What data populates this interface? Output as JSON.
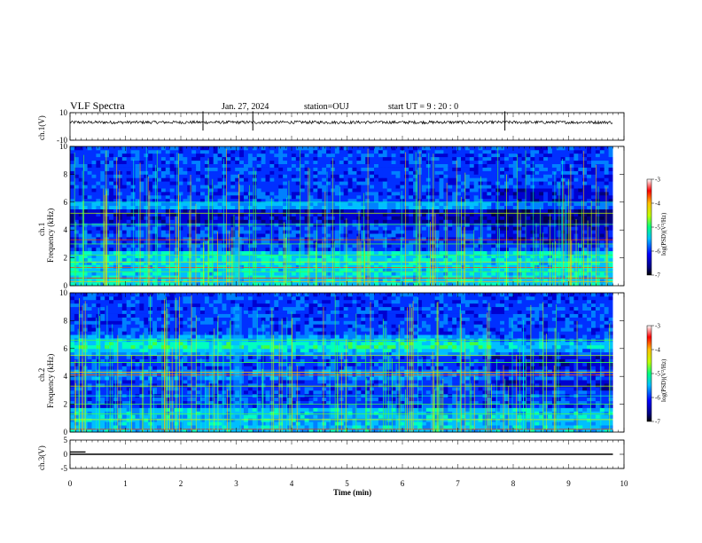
{
  "header": {
    "title": "VLF Spectra",
    "date": "Jan. 27, 2024",
    "station": "station=OUJ",
    "start_ut": "start  UT =   9 : 20 : 0"
  },
  "chart_data": [
    {
      "type": "line",
      "panel": "ch1-waveform",
      "ylabel": "ch.1(V)",
      "ylim": [
        -10,
        10
      ],
      "yticks": [
        "10",
        "-10"
      ],
      "baseline": 3,
      "spikes_min": [
        2.4,
        3.3,
        7.85
      ]
    },
    {
      "type": "heatmap",
      "panel": "ch1-spectrogram",
      "ylabel": "Frequency (kHz)",
      "channel_label": "ch.1",
      "ylim": [
        0,
        10
      ],
      "yticks": [
        "0",
        "2",
        "4",
        "6",
        "8",
        "10"
      ],
      "colorbar": {
        "label": "log(PSD)(V²/Hz)",
        "ticks": [
          "-3",
          "-4",
          "-5",
          "-6",
          "-7"
        ],
        "range": [
          -7,
          -3
        ]
      }
    },
    {
      "type": "heatmap",
      "panel": "ch2-spectrogram",
      "ylabel": "Frequency (kHz)",
      "channel_label": "ch.2",
      "ylim": [
        0,
        10
      ],
      "yticks": [
        "0",
        "2",
        "4",
        "6",
        "8",
        "10"
      ],
      "colorbar": {
        "label": "log(PSD)(V²/Hz)",
        "ticks": [
          "-3",
          "-4",
          "-5",
          "-6",
          "-7"
        ],
        "range": [
          -7,
          -3
        ]
      }
    },
    {
      "type": "line",
      "panel": "ch3-waveform",
      "ylabel": "ch.3(V)",
      "ylim": [
        -5,
        5
      ],
      "yticks": [
        "5",
        "0",
        "-5"
      ],
      "values": [
        {
          "x": 0,
          "y": 0
        },
        {
          "x": 9.8,
          "y": 0
        }
      ]
    }
  ],
  "xaxis": {
    "label": "Time  (min)",
    "ticks": [
      "0",
      "1",
      "2",
      "3",
      "4",
      "5",
      "6",
      "7",
      "8",
      "9",
      "10"
    ],
    "xlim": [
      0,
      10
    ],
    "data_end": 9.8
  },
  "colors": {
    "colormap": [
      "#00007f",
      "#0000ff",
      "#00bfff",
      "#00ff7f",
      "#bfff00",
      "#ffbf00",
      "#ff0000",
      "#ffffff"
    ]
  }
}
